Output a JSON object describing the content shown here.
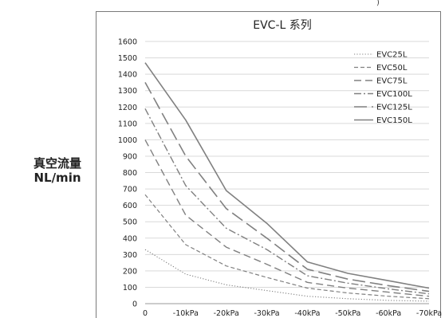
{
  "top_caption": ")",
  "chart_data": {
    "type": "line",
    "title": "EVC-L 系列",
    "ylabel": [
      "真空流量",
      "NL/min"
    ],
    "xlabel": "",
    "categories": [
      "0",
      "-10kPa",
      "-20kPa",
      "-30kPa",
      "-40kPa",
      "-50kPa",
      "-60kPa",
      "-70kPa"
    ],
    "ylim": [
      0,
      1600
    ],
    "ytick_step": 100,
    "grid": "horizontal",
    "legend_position": "top-right",
    "series": [
      {
        "name": "EVC25L",
        "values": [
          330,
          180,
          115,
          80,
          45,
          30,
          20,
          15
        ],
        "dash": "1.2,2.2",
        "width": 1.1
      },
      {
        "name": "EVC50L",
        "values": [
          665,
          360,
          230,
          160,
          95,
          65,
          45,
          30
        ],
        "dash": "5,3",
        "width": 1.2
      },
      {
        "name": "EVC75L",
        "values": [
          1000,
          540,
          345,
          240,
          130,
          95,
          70,
          45
        ],
        "dash": "9,5",
        "width": 1.4
      },
      {
        "name": "EVC100L",
        "values": [
          1190,
          720,
          460,
          330,
          170,
          125,
          90,
          60
        ],
        "dash": "9,3,2,3",
        "width": 1.4
      },
      {
        "name": "EVC125L",
        "values": [
          1350,
          900,
          580,
          400,
          210,
          150,
          110,
          75
        ],
        "dash": "16,6",
        "width": 1.6
      },
      {
        "name": "EVC150L",
        "values": [
          1470,
          1120,
          690,
          490,
          255,
          185,
          140,
          95
        ],
        "dash": "",
        "width": 1.6
      }
    ],
    "colors": {
      "line": "#808080",
      "axis": "#9a9a9a",
      "grid": "#d9d9d9",
      "frame": "#7a7a7a"
    }
  }
}
